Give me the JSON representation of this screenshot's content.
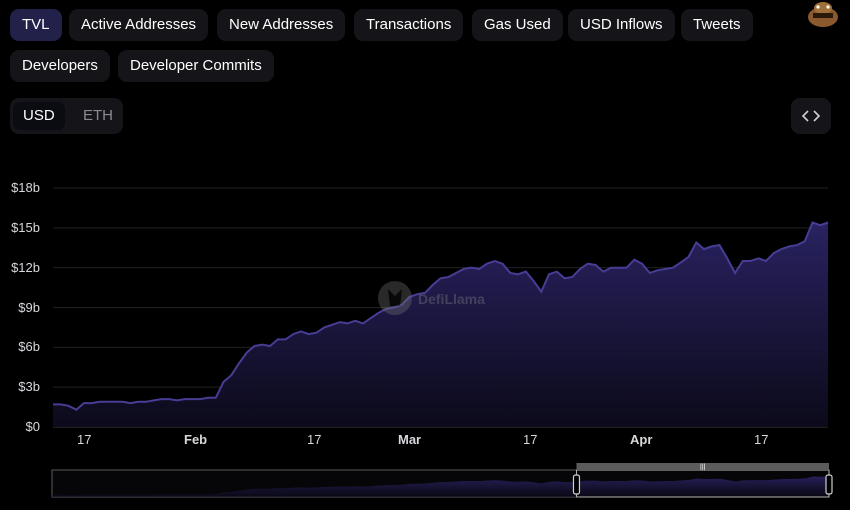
{
  "tabs": [
    {
      "label": "TVL",
      "active": true
    },
    {
      "label": "Active Addresses"
    },
    {
      "label": "New Addresses"
    },
    {
      "label": "Transactions"
    },
    {
      "label": "Gas Used"
    },
    {
      "label": "USD Inflows"
    },
    {
      "label": "Tweets"
    },
    {
      "label": "Developers"
    },
    {
      "label": "Developer Commits"
    }
  ],
  "currency_toggle": {
    "options": [
      "USD",
      "ETH"
    ],
    "selected": "USD"
  },
  "embed_button": {
    "icon": "code-icon",
    "label": "<>"
  },
  "watermark": {
    "text": "DefiLlama"
  },
  "colors": {
    "accent": "#22214a",
    "line": "#473d95",
    "area_top": "#2b2466",
    "area_bottom": "#0d0b1d"
  },
  "chart_data": {
    "type": "area",
    "yticks": [
      "$0",
      "$3b",
      "$6b",
      "$9b",
      "$12b",
      "$15b",
      "$18b"
    ],
    "xticks": [
      "17",
      "Feb",
      "17",
      "Mar",
      "17",
      "Apr",
      "17"
    ],
    "ylim": [
      0,
      18
    ],
    "yunit": "$b",
    "grid": true,
    "series": [
      {
        "values": [
          1.7,
          1.7,
          1.6,
          1.3,
          1.8,
          1.8,
          1.9,
          1.9,
          1.9,
          1.9,
          1.8,
          1.9,
          1.9,
          2.0,
          2.1,
          2.1,
          2.0,
          2.1,
          2.1,
          2.1,
          2.2,
          2.2,
          3.4,
          3.9,
          4.8,
          5.6,
          6.1,
          6.2,
          6.1,
          6.6,
          6.6,
          7.0,
          7.2,
          7.0,
          7.1,
          7.5,
          7.7,
          7.9,
          7.8,
          8.0,
          7.8,
          8.2,
          8.6,
          8.9,
          9.0,
          9.2,
          9.8,
          10.0,
          10.1,
          10.7,
          11.2,
          11.3,
          11.6,
          11.9,
          12.0,
          11.9,
          12.3,
          12.5,
          12.3,
          11.6,
          11.5,
          11.7,
          11.0,
          10.2,
          11.5,
          11.7,
          11.2,
          11.3,
          11.9,
          12.3,
          12.2,
          11.7,
          12.0,
          12.0,
          12.0,
          12.6,
          12.3,
          11.6,
          11.8,
          11.9,
          12.0,
          12.4,
          12.8,
          13.9,
          13.4,
          13.6,
          13.7,
          12.7,
          11.6,
          12.5,
          12.5,
          12.7,
          12.5,
          13.1,
          13.4,
          13.6,
          13.7,
          14.0,
          15.4,
          15.2,
          15.4
        ]
      }
    ],
    "brush": {
      "start": 0.675,
      "end": 1.0,
      "handle": "|||"
    }
  }
}
